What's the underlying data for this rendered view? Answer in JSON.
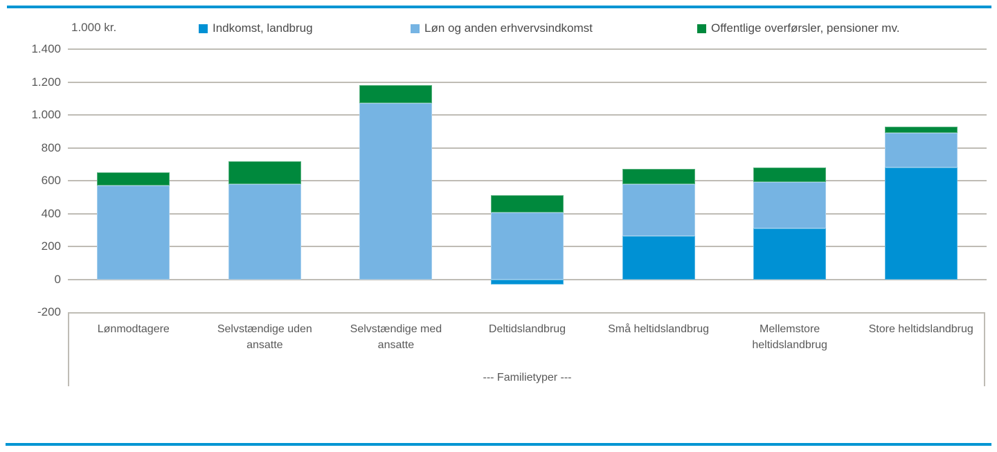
{
  "page": {
    "accent_color": "#0095D3",
    "grid_color": "#BFBCB5",
    "text_color": "#595959",
    "background": "#FFFFFF"
  },
  "chart_data": {
    "type": "bar",
    "stacked": true,
    "title": "",
    "unit_label": "1.000 kr.",
    "xlabel": "--- Familietyper ---",
    "ylabel": "",
    "grid": true,
    "legend_position": "top",
    "categories": [
      "Lønmodtagere",
      "Selvstændige uden ansatte",
      "Selvstændige med ansatte",
      "Deltidslandbrug",
      "Små heltidslandbrug",
      "Mellemstore heltidslandbrug",
      "Store heltidslandbrug"
    ],
    "series": [
      {
        "name": "Indkomst, landbrug",
        "color": "#0091D4",
        "values": [
          0,
          0,
          0,
          -30,
          265,
          310,
          680
        ]
      },
      {
        "name": "Løn og anden erhvervsindkomst",
        "color": "#76B4E3",
        "values": [
          570,
          580,
          1070,
          405,
          315,
          280,
          210
        ]
      },
      {
        "name": "Offentlige overførsler, pensioner mv.",
        "color": "#00893D",
        "values": [
          80,
          140,
          110,
          105,
          90,
          90,
          40
        ]
      }
    ],
    "stack_totals": [
      650,
      720,
      1180,
      510,
      670,
      680,
      930
    ],
    "y_axis": {
      "min": -200,
      "max": 1400,
      "step": 200,
      "tick_labels": [
        "1.400",
        "1.200",
        "1.000",
        "800",
        "600",
        "400",
        "200",
        "0",
        "-200"
      ]
    }
  }
}
